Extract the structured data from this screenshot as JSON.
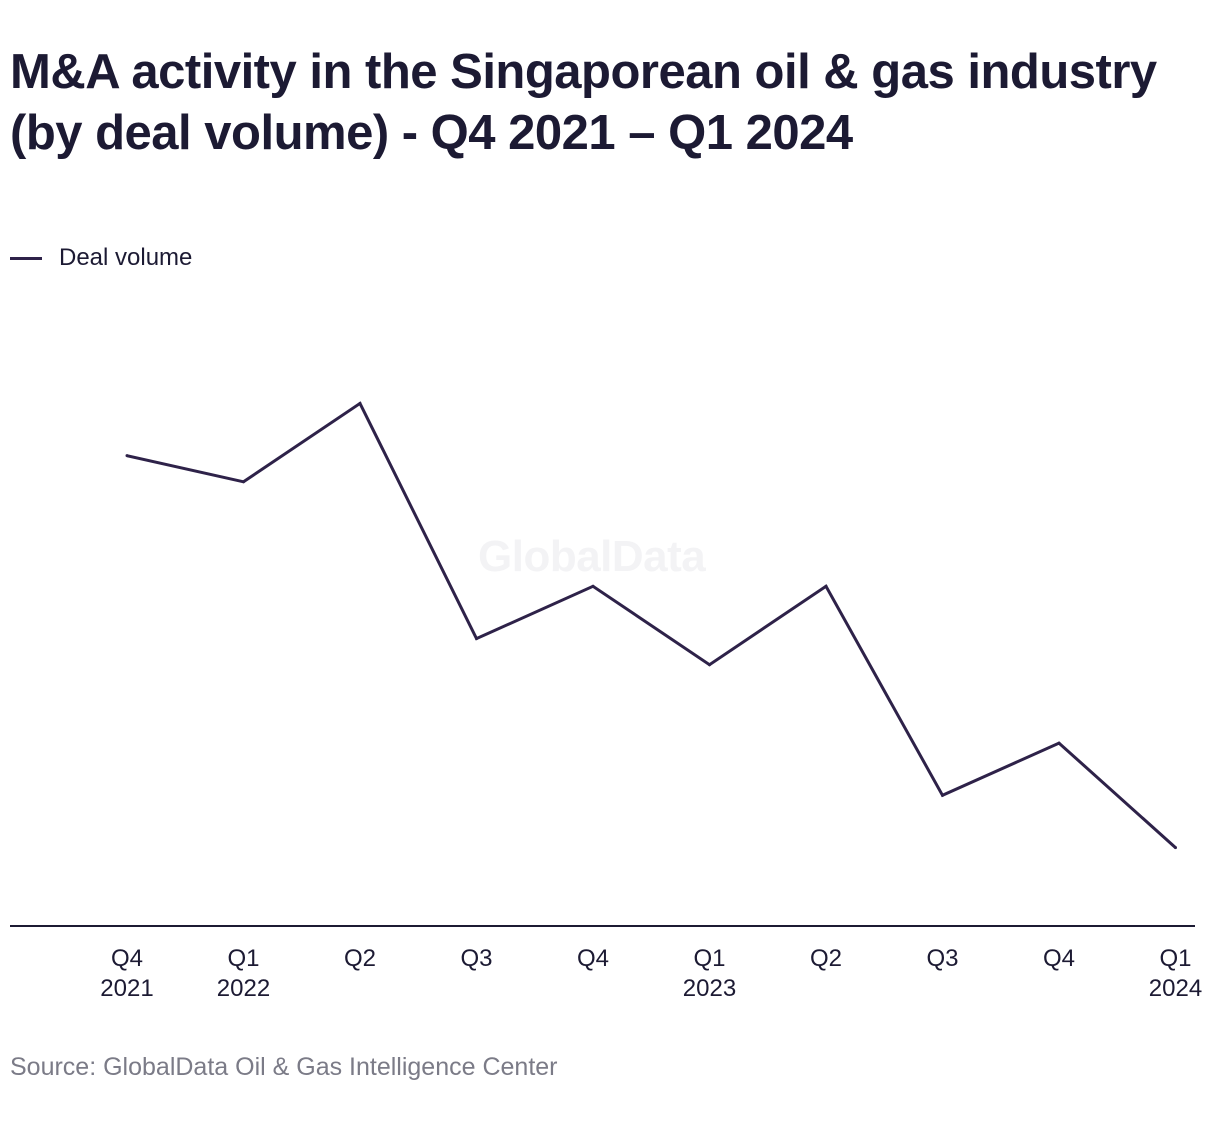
{
  "chart_data": {
    "type": "line",
    "title": "M&A activity in the Singaporean oil & gas industry (by deal volume) - Q4 2021 – Q1 2024",
    "categories": [
      [
        "Q4",
        "2021"
      ],
      [
        "Q1",
        "2022"
      ],
      [
        "Q2"
      ],
      [
        "Q3"
      ],
      [
        "Q4"
      ],
      [
        "Q1",
        "2023"
      ],
      [
        "Q2"
      ],
      [
        "Q3"
      ],
      [
        "Q4"
      ],
      [
        "Q1",
        "2024"
      ]
    ],
    "series": [
      {
        "name": "Deal volume",
        "color": "#2e2249",
        "values": [
          18,
          17,
          20,
          11,
          13,
          10,
          13,
          5,
          7,
          3
        ]
      }
    ],
    "xlabel": "",
    "ylabel": "",
    "ylim": [
      0,
      23
    ],
    "y_axis_visible": false,
    "grid": false,
    "legend_position": "top-left",
    "watermark": "GlobalData"
  },
  "source": "Source: GlobalData Oil & Gas Intelligence Center"
}
